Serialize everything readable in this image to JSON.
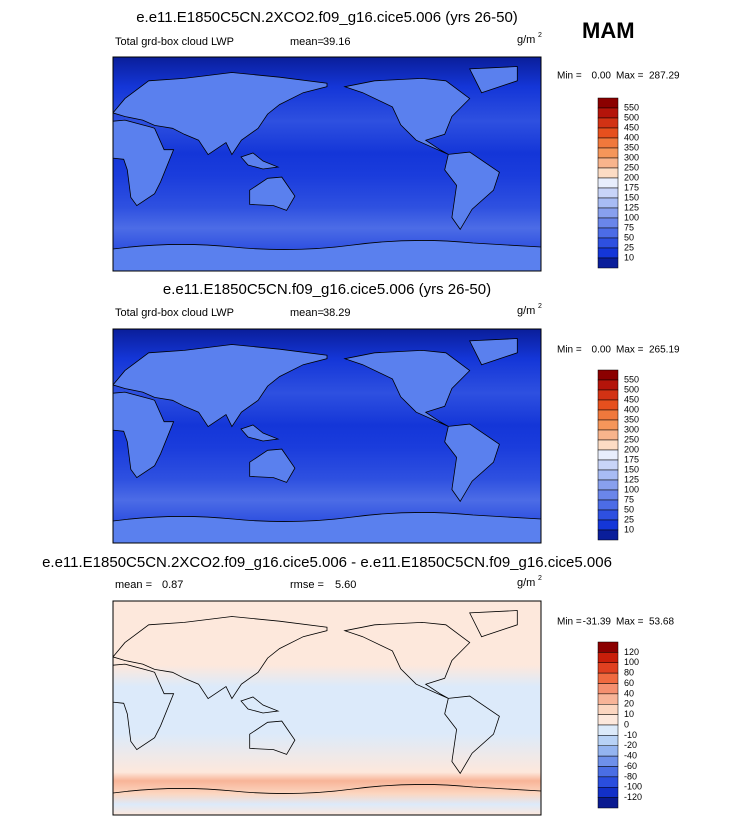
{
  "header": {
    "season": "MAM"
  },
  "panels": [
    {
      "title": "e.e11.E1850C5CN.2XCO2.f09_g16.cice5.006 (yrs 26-50)",
      "field_label": "Total grd-box cloud LWP",
      "mean_label": "mean=",
      "mean": "39.16",
      "units": "g/m",
      "units_exponent": "2",
      "min_label": "Min =",
      "min": "0.00",
      "max_label": "Max =",
      "max": "287.29",
      "colorbar_levels": [
        550,
        500,
        450,
        400,
        350,
        300,
        250,
        200,
        175,
        150,
        125,
        100,
        75,
        50,
        25,
        10
      ]
    },
    {
      "title": "e.e11.E1850C5CN.f09_g16.cice5.006 (yrs 26-50)",
      "field_label": "Total grd-box cloud LWP",
      "mean_label": "mean=",
      "mean": "38.29",
      "units": "g/m",
      "units_exponent": "2",
      "min_label": "Min =",
      "min": "0.00",
      "max_label": "Max =",
      "max": "265.19",
      "colorbar_levels": [
        550,
        500,
        450,
        400,
        350,
        300,
        250,
        200,
        175,
        150,
        125,
        100,
        75,
        50,
        25,
        10
      ]
    },
    {
      "title": "e.e11.E1850C5CN.2XCO2.f09_g16.cice5.006 - e.e11.E1850C5CN.f09_g16.cice5.006",
      "mean_label": "mean =",
      "mean": "0.87",
      "rmse_label": "rmse =",
      "rmse": "5.60",
      "units": "g/m",
      "units_exponent": "2",
      "min_label": "Min =",
      "min": "-31.39",
      "max_label": "Max =",
      "max": "53.68",
      "colorbar_levels": [
        120,
        100,
        80,
        60,
        40,
        20,
        10,
        0,
        -10,
        -20,
        -40,
        -60,
        -80,
        -100,
        -120
      ]
    }
  ]
}
